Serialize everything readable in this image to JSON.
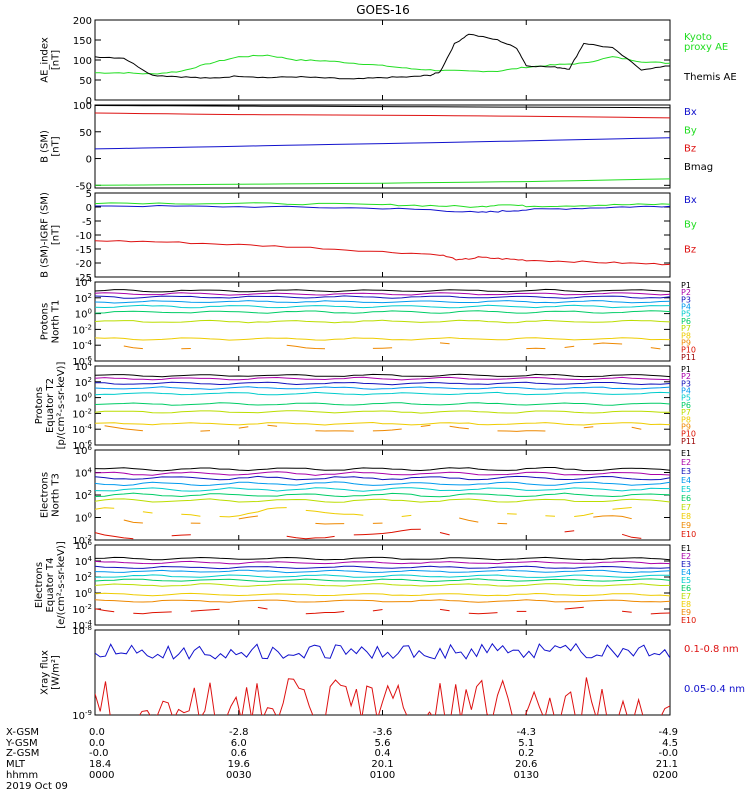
{
  "title": "GOES-16",
  "colors": {
    "axis": "#000000",
    "green": "#22dd22",
    "black": "#000000",
    "blue": "#1111cc",
    "red": "#dd1111",
    "P": [
      "#000000",
      "#aa00aa",
      "#1111bb",
      "#0099ee",
      "#00cccc",
      "#00cc66",
      "#bbdd00",
      "#eecc00",
      "#ee8800",
      "#dd1100",
      "#990000"
    ],
    "E": [
      "#000000",
      "#aa00aa",
      "#1111bb",
      "#0099ee",
      "#00cccc",
      "#00cc66",
      "#bbdd00",
      "#eecc00",
      "#ee8800",
      "#dd1100",
      "#990000"
    ]
  },
  "chart_data": [
    {
      "type": "line",
      "id": "ae",
      "ylabel": [
        "AE_index",
        "[nT]"
      ],
      "ylim": [
        0,
        200
      ],
      "yticks": [
        "200",
        "150",
        "100",
        "50",
        "0"
      ],
      "ytick_values": [
        200,
        150,
        100,
        50,
        0
      ],
      "series": [
        {
          "name": "Kyoto proxy AE",
          "color": "#22dd22",
          "x": [
            0,
            6,
            12,
            18,
            24,
            30,
            36,
            42,
            48,
            54,
            60,
            66,
            72,
            78,
            84,
            90,
            96,
            102,
            108,
            114,
            120
          ],
          "y": [
            68,
            68,
            65,
            72,
            92,
            108,
            112,
            100,
            98,
            92,
            86,
            78,
            74,
            72,
            72,
            82,
            88,
            92,
            108,
            96,
            92
          ]
        },
        {
          "name": "Themis AE",
          "color": "#000000",
          "x": [
            0,
            6,
            12,
            18,
            24,
            30,
            36,
            42,
            48,
            54,
            60,
            66,
            70,
            72,
            75,
            78,
            84,
            88,
            90,
            96,
            99,
            102,
            108,
            114,
            120
          ],
          "y": [
            108,
            105,
            62,
            58,
            54,
            60,
            56,
            58,
            55,
            52,
            56,
            58,
            62,
            70,
            140,
            165,
            150,
            130,
            86,
            82,
            78,
            142,
            130,
            76,
            85
          ]
        }
      ],
      "legend": [
        {
          "label": "Kyoto",
          "color": "#22dd22"
        },
        {
          "label": "proxy AE",
          "color": "#22dd22"
        },
        {
          "label": "Themis AE",
          "color": "#000000"
        }
      ]
    },
    {
      "type": "line",
      "id": "bsm",
      "ylabel": [
        "B (SM)",
        "[nT]"
      ],
      "ylim": [
        -55,
        100
      ],
      "yticks": [
        "100",
        "50",
        "0",
        "-50"
      ],
      "ytick_values": [
        100,
        50,
        0,
        -50
      ],
      "series": [
        {
          "name": "Bx",
          "color": "#1111cc",
          "x": [
            0,
            30,
            60,
            90,
            120
          ],
          "y": [
            18,
            23,
            28,
            33,
            39
          ]
        },
        {
          "name": "By",
          "color": "#22dd22",
          "x": [
            0,
            30,
            60,
            90,
            120
          ],
          "y": [
            -50,
            -48,
            -46,
            -43,
            -38
          ]
        },
        {
          "name": "Bz",
          "color": "#dd1111",
          "x": [
            0,
            30,
            60,
            90,
            120
          ],
          "y": [
            85,
            82,
            81,
            79,
            76
          ]
        },
        {
          "name": "Bmag",
          "color": "#000000",
          "x": [
            0,
            30,
            60,
            90,
            120
          ],
          "y": [
            99,
            98,
            97,
            96,
            95
          ]
        }
      ],
      "legend": [
        {
          "label": "Bx",
          "color": "#1111cc"
        },
        {
          "label": "By",
          "color": "#22dd22"
        },
        {
          "label": "Bz",
          "color": "#dd1111"
        },
        {
          "label": "Bmag",
          "color": "#000000"
        }
      ]
    },
    {
      "type": "line",
      "id": "bigrf",
      "ylabel": [
        "B (SM)-IGRF (SM)",
        "[nT]"
      ],
      "ylim": [
        -25,
        5
      ],
      "yticks": [
        "5",
        "0",
        "-5",
        "-10",
        "-15",
        "-20",
        "-25"
      ],
      "ytick_values": [
        5,
        0,
        -5,
        -10,
        -15,
        -20,
        -25
      ],
      "series": [
        {
          "name": "Bx",
          "color": "#1111cc",
          "x": [
            0,
            20,
            40,
            60,
            70,
            80,
            85,
            90,
            100,
            110,
            120
          ],
          "y": [
            0.5,
            0.2,
            0,
            -0.5,
            -1,
            -2,
            -1.5,
            -1,
            -0.5,
            0,
            0.3
          ]
        },
        {
          "name": "By",
          "color": "#22dd22",
          "x": [
            0,
            20,
            40,
            60,
            70,
            80,
            85,
            90,
            100,
            110,
            120
          ],
          "y": [
            1.5,
            1.3,
            1.2,
            0.8,
            0.5,
            0,
            1,
            0.3,
            0.5,
            0.8,
            1
          ]
        },
        {
          "name": "Bz",
          "color": "#dd1111",
          "x": [
            0,
            15,
            30,
            45,
            60,
            72,
            76,
            80,
            85,
            90,
            100,
            110,
            120
          ],
          "y": [
            -12,
            -12.5,
            -13.5,
            -14.5,
            -16,
            -17,
            -19,
            -18,
            -18.5,
            -19,
            -19.5,
            -20,
            -20.5
          ]
        }
      ],
      "legend": [
        {
          "label": "Bx",
          "color": "#1111cc"
        },
        {
          "label": "By",
          "color": "#22dd22"
        },
        {
          "label": "Bz",
          "color": "#dd1111"
        }
      ]
    },
    {
      "type": "line",
      "id": "protonsN",
      "scale": "log",
      "ylabel": [
        "Protons",
        "North T1"
      ],
      "ylim": [
        -6,
        4
      ],
      "yticks": [
        "10^4",
        "10^2",
        "10^0",
        "10^-2",
        "10^-4",
        "10^-6"
      ],
      "ytick_values": [
        4,
        2,
        0,
        -2,
        -4,
        -6
      ],
      "legend_labels": [
        "P1",
        "P2",
        "P3",
        "P4",
        "P5",
        "P6",
        "P7",
        "P8",
        "P9",
        "P10",
        "P11"
      ],
      "series_levels": [
        2.9,
        2.5,
        2.1,
        1.5,
        0.9,
        0.2,
        -1.0,
        -3.2,
        -4.2,
        -6.5,
        -7.0
      ]
    },
    {
      "type": "line",
      "id": "protonsE",
      "scale": "log",
      "ylabel": [
        "Protons",
        "Equator T2",
        "[p/(cm²-s-sr-keV)]"
      ],
      "ylim": [
        -6,
        4
      ],
      "yticks": [
        "10^4",
        "10^2",
        "10^0",
        "10^-2",
        "10^-4",
        "10^-6"
      ],
      "ytick_values": [
        4,
        2,
        0,
        -2,
        -4,
        -6
      ],
      "legend_labels": [
        "P1",
        "P2",
        "P3",
        "P4",
        "P5",
        "P6",
        "P7",
        "P8",
        "P9",
        "P10",
        "P11"
      ],
      "series_levels": [
        2.8,
        2.4,
        1.8,
        1.2,
        0.5,
        -0.8,
        -1.8,
        -3.3,
        -4.0,
        -6.5,
        -7.0
      ]
    },
    {
      "type": "line",
      "id": "electronsN",
      "scale": "log",
      "ylabel": [
        "Electrons",
        "North T3"
      ],
      "ylim": [
        -2,
        6
      ],
      "yticks": [
        "10^6",
        "10^4",
        "10^2",
        "10^0",
        "10^-2"
      ],
      "ytick_values": [
        6,
        4,
        2,
        0,
        -2
      ],
      "legend_labels": [
        "E1",
        "E2",
        "E3",
        "E4",
        "E5",
        "E6",
        "E7",
        "E8",
        "E9",
        "E10"
      ],
      "series_levels": [
        4.3,
        3.9,
        3.5,
        3.0,
        2.5,
        2.0,
        1.5,
        0.4,
        -0.3,
        -1.5
      ]
    },
    {
      "type": "line",
      "id": "electronsE",
      "scale": "log",
      "ylabel": [
        "Electrons",
        "Equator T4",
        "[e/(cm²-s-sr-keV)]"
      ],
      "ylim": [
        -4,
        6
      ],
      "yticks": [
        "10^6",
        "10^4",
        "10^2",
        "10^0",
        "10^-2",
        "10^-4"
      ],
      "ytick_values": [
        6,
        4,
        2,
        0,
        -2,
        -4
      ],
      "legend_labels": [
        "E1",
        "E2",
        "E3",
        "E4",
        "E5",
        "E6",
        "E7",
        "E8",
        "E9",
        "E10"
      ],
      "series_levels": [
        4.3,
        3.8,
        3.2,
        2.7,
        2.1,
        1.6,
        1.0,
        -0.2,
        -1.0,
        -2.2
      ]
    },
    {
      "type": "line",
      "id": "xray",
      "scale": "log",
      "ylabel": [
        "Xray flux",
        "[W/m²]"
      ],
      "ylim": [
        -9,
        -8
      ],
      "yticks": [
        "10^-8",
        "10^-9"
      ],
      "ytick_values": [
        -8,
        -9
      ],
      "series": [
        {
          "name": "0.1-0.8 nm",
          "color": "#dd1111"
        },
        {
          "name": "0.05-0.4 nm",
          "color": "#1111cc"
        }
      ],
      "legend": [
        {
          "label": "0.1-0.8 nm",
          "color": "#dd1111"
        },
        {
          "label": "0.05-0.4 nm",
          "color": "#1111cc"
        }
      ]
    }
  ],
  "ephemeris": {
    "labels": [
      "X-GSM",
      "Y-GSM",
      "Z-GSM",
      "MLT",
      "hhmm",
      "2019 Oct 09"
    ],
    "columns": [
      [
        "0.0",
        "0.0",
        "-0.0",
        "18.4",
        "0000"
      ],
      [
        "-2.8",
        "6.0",
        "0.6",
        "19.6",
        "0030"
      ],
      [
        "-3.6",
        "5.6",
        "0.4",
        "20.1",
        "0100"
      ],
      [
        "-4.3",
        "5.1",
        "0.2",
        "20.6",
        "0130"
      ],
      [
        "-4.9",
        "4.5",
        "-0.0",
        "21.1",
        "0200"
      ]
    ]
  }
}
